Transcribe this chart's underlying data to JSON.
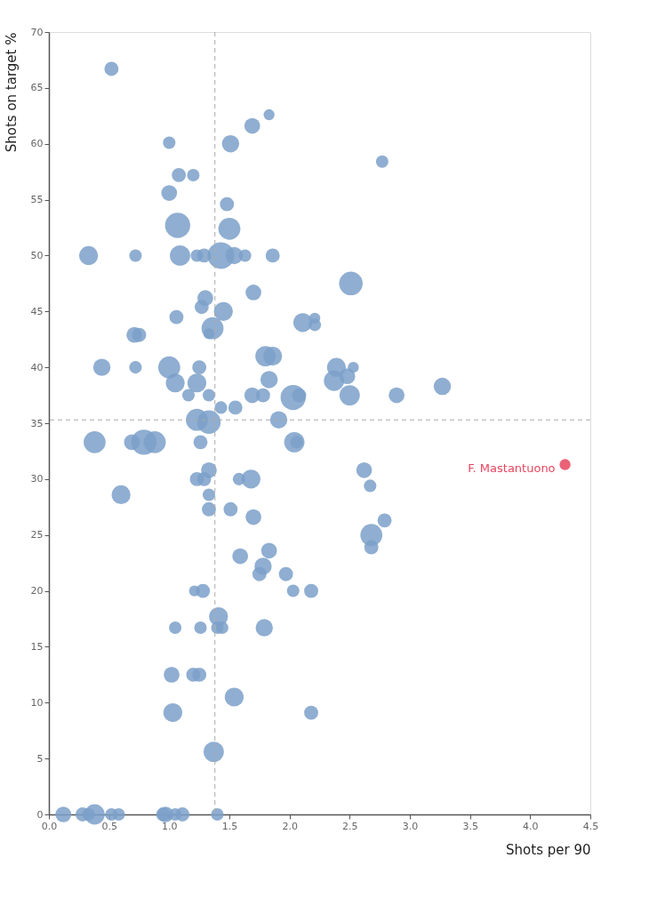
{
  "chart_data": {
    "type": "bubble",
    "xlabel": "Shots per 90",
    "ylabel": "Shots on target %",
    "xlim": [
      0,
      4.5
    ],
    "xticks": [
      {
        "value": 0,
        "label": "0.0"
      },
      0.5,
      {
        "value": 1,
        "label": "1.0"
      },
      1.5,
      {
        "value": 2,
        "label": "2.0"
      },
      2.5,
      {
        "value": 3,
        "label": "3.0"
      },
      3.5,
      {
        "value": 4,
        "label": "4.0"
      },
      4.5
    ],
    "ylim": [
      0,
      70
    ],
    "yticks": [
      0,
      5,
      10,
      15,
      20,
      25,
      30,
      35,
      40,
      45,
      50,
      55,
      60,
      65,
      70
    ],
    "grid": false,
    "legend": false,
    "series": [
      {
        "color": "#7ba0c9",
        "x": [
          0.52,
          1.83,
          1.69,
          1.0,
          1.51,
          2.77,
          1.08,
          1.2,
          1.0,
          1.48,
          1.07,
          1.5,
          0.33,
          0.72,
          1.09,
          1.23,
          1.29,
          1.43,
          1.54,
          1.63,
          1.86,
          2.51,
          1.7,
          1.3,
          1.27,
          1.45,
          1.06,
          2.11,
          2.21,
          2.21,
          1.36,
          1.33,
          0.71,
          0.75,
          0.44,
          0.72,
          1.0,
          1.25,
          1.8,
          1.86,
          2.39,
          2.53,
          1.05,
          1.23,
          1.83,
          2.37,
          2.48,
          3.27,
          1.16,
          1.33,
          1.69,
          1.78,
          2.03,
          2.08,
          2.5,
          2.89,
          1.43,
          1.55,
          1.23,
          1.33,
          1.91,
          0.38,
          0.69,
          0.79,
          0.88,
          1.26,
          2.04,
          2.06,
          1.33,
          1.23,
          1.29,
          1.58,
          1.68,
          2.62,
          2.67,
          0.6,
          1.33,
          1.33,
          1.51,
          1.7,
          2.79,
          2.68,
          2.68,
          1.83,
          1.59,
          1.78,
          1.75,
          1.97,
          1.21,
          1.28,
          2.03,
          2.18,
          1.41,
          1.05,
          1.26,
          1.4,
          1.44,
          1.79,
          1.02,
          1.2,
          1.25,
          1.54,
          1.03,
          2.18,
          1.37,
          0.12,
          0.28,
          0.33,
          0.38,
          0.52,
          0.58,
          0.95,
          0.97,
          1.05,
          1.11,
          1.4
        ],
        "values": [
          66.7,
          62.6,
          61.6,
          60.1,
          60.0,
          58.4,
          57.2,
          57.2,
          55.6,
          54.6,
          52.7,
          52.4,
          50.0,
          50.0,
          50.0,
          50.0,
          50.0,
          50.0,
          50.0,
          50.0,
          50.0,
          47.5,
          46.7,
          46.2,
          45.4,
          45.0,
          44.5,
          44.0,
          44.4,
          43.8,
          43.5,
          43.0,
          42.9,
          42.9,
          40.0,
          40.0,
          40.0,
          40.0,
          41.0,
          41.0,
          40.0,
          40.0,
          38.6,
          38.6,
          38.9,
          38.8,
          39.2,
          38.3,
          37.5,
          37.5,
          37.5,
          37.5,
          37.3,
          37.5,
          37.5,
          37.5,
          36.4,
          36.4,
          35.3,
          35.1,
          35.3,
          33.3,
          33.3,
          33.3,
          33.3,
          33.3,
          33.3,
          33.3,
          30.8,
          30.0,
          30.0,
          30.0,
          30.0,
          30.8,
          29.4,
          28.6,
          28.6,
          27.3,
          27.3,
          26.6,
          26.3,
          25.0,
          23.9,
          23.6,
          23.1,
          22.2,
          21.5,
          21.5,
          20.0,
          20.0,
          20.0,
          20.0,
          17.7,
          16.7,
          16.7,
          16.7,
          16.7,
          16.7,
          12.5,
          12.5,
          12.5,
          10.5,
          9.1,
          9.1,
          5.6,
          0,
          0,
          0,
          0,
          0,
          0,
          0,
          0,
          0,
          0,
          0
        ],
        "sizes": [
          0.28,
          0.17,
          0.35,
          0.22,
          0.42,
          0.22,
          0.28,
          0.22,
          0.35,
          0.28,
          0.89,
          0.68,
          0.5,
          0.22,
          0.58,
          0.22,
          0.28,
          1,
          0.42,
          0.22,
          0.28,
          0.78,
          0.35,
          0.35,
          0.28,
          0.5,
          0.28,
          0.5,
          0.17,
          0.22,
          0.68,
          0.17,
          0.35,
          0.28,
          0.42,
          0.22,
          0.68,
          0.28,
          0.58,
          0.5,
          0.5,
          0.17,
          0.5,
          0.5,
          0.42,
          0.58,
          0.35,
          0.42,
          0.22,
          0.22,
          0.35,
          0.28,
          0.89,
          0.28,
          0.58,
          0.35,
          0.22,
          0.28,
          0.68,
          0.78,
          0.42,
          0.68,
          0.35,
          0.89,
          0.68,
          0.28,
          0.58,
          0.22,
          0.35,
          0.28,
          0.28,
          0.22,
          0.5,
          0.35,
          0.22,
          0.5,
          0.22,
          0.28,
          0.28,
          0.35,
          0.28,
          0.68,
          0.28,
          0.35,
          0.35,
          0.42,
          0.28,
          0.28,
          0.17,
          0.28,
          0.22,
          0.28,
          0.5,
          0.22,
          0.22,
          0.22,
          0.22,
          0.42,
          0.35,
          0.28,
          0.28,
          0.5,
          0.5,
          0.28,
          0.58,
          0.35,
          0.28,
          0.22,
          0.58,
          0.22,
          0.22,
          0.28,
          0.35,
          0.22,
          0.28,
          0.22
        ]
      },
      {
        "name": "F. Mastantuono",
        "color": "#e8455f",
        "x": [
          4.29
        ],
        "values": [
          31.3
        ],
        "sizes": [
          0.17
        ]
      }
    ],
    "ref_lines": [
      {
        "axis": "x",
        "value": 1.38,
        "color": "#aaaaaa",
        "line_style": "dashed"
      },
      {
        "axis": "y",
        "value": 35.3,
        "color": "#aaaaaa",
        "line_style": "dashed"
      }
    ]
  }
}
